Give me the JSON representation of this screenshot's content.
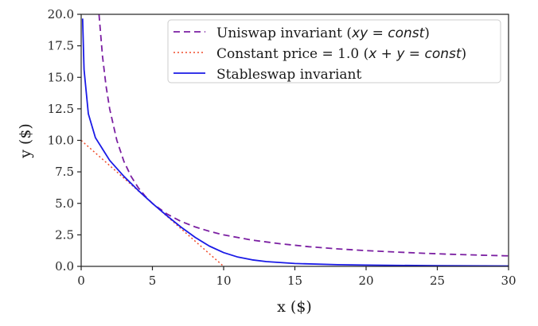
{
  "chart_data": {
    "type": "line",
    "title": "",
    "xlabel": "x ($)",
    "ylabel": "y ($)",
    "xlim": [
      0,
      30
    ],
    "ylim": [
      0,
      20
    ],
    "xticks": [
      0,
      5,
      10,
      15,
      20,
      25,
      30
    ],
    "xtick_labels": [
      "0",
      "5",
      "10",
      "15",
      "20",
      "25",
      "30"
    ],
    "yticks": [
      0,
      2.5,
      5,
      7.5,
      10,
      12.5,
      15,
      17.5,
      20
    ],
    "ytick_labels": [
      "0.0",
      "2.5",
      "5.0",
      "7.5",
      "10.0",
      "12.5",
      "15.0",
      "17.5",
      "20.0"
    ],
    "grid": false,
    "legend_position": "upper right",
    "series": [
      {
        "name": "Uniswap invariant (xy = const)",
        "legend_plain": "Uniswap invariant (",
        "legend_math": "xy",
        "legend_eq": " = ",
        "legend_math2": "const",
        "legend_close": ")",
        "color": "#7b1fa2",
        "style": "dashed",
        "x": [
          1.25,
          1.5,
          1.75,
          2,
          2.5,
          3,
          3.5,
          4,
          4.5,
          5,
          6,
          7,
          8,
          9,
          10,
          12,
          14,
          16,
          18,
          20,
          22,
          24,
          26,
          28,
          30
        ],
        "y": [
          20,
          16.67,
          14.29,
          12.5,
          10,
          8.33,
          7.14,
          6.25,
          5.56,
          5,
          4.17,
          3.57,
          3.13,
          2.78,
          2.5,
          2.08,
          1.79,
          1.56,
          1.39,
          1.25,
          1.14,
          1.04,
          0.96,
          0.89,
          0.83
        ]
      },
      {
        "name": "Constant price = 1.0 (x + y = const)",
        "legend_plain": "Constant price = 1.0 (",
        "legend_math": "x",
        "legend_eq": " + ",
        "legend_math_y": "y",
        "legend_eq2": " = ",
        "legend_math2": "const",
        "legend_close": ")",
        "color": "#f04a2a",
        "style": "dotted",
        "x": [
          0,
          10
        ],
        "y": [
          10,
          0
        ]
      },
      {
        "name": "Stableswap invariant",
        "color": "#1a1ae6",
        "style": "solid",
        "x": [
          0.1,
          0.2,
          0.5,
          1,
          2,
          3,
          4,
          5,
          6,
          7,
          8,
          9,
          10,
          11,
          12,
          13,
          15,
          18,
          20,
          25,
          30
        ],
        "y": [
          19.66,
          15.63,
          12.11,
          10.21,
          8.41,
          7.14,
          6.03,
          5.0,
          4.03,
          3.12,
          2.3,
          1.61,
          1.09,
          0.74,
          0.52,
          0.38,
          0.23,
          0.13,
          0.1,
          0.05,
          0.03
        ]
      }
    ]
  }
}
